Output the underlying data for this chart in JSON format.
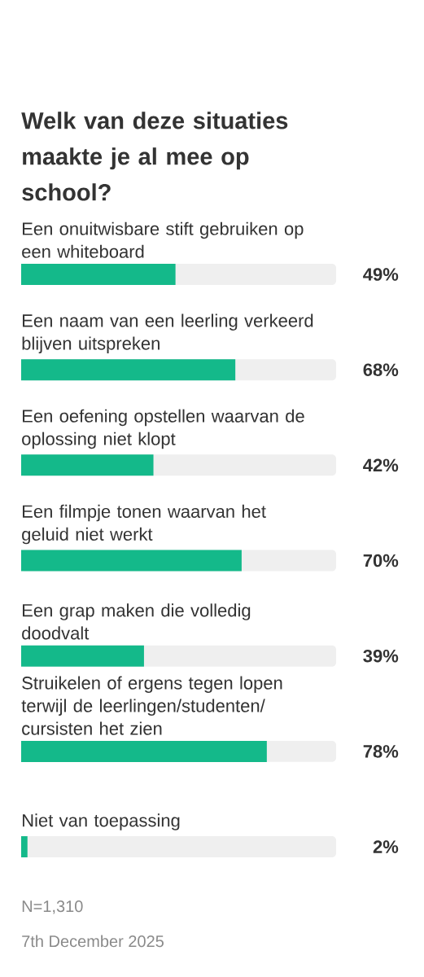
{
  "chart_data": {
    "type": "bar",
    "orientation": "horizontal",
    "title": "Welk van deze situaties maakte je al mee op school?",
    "categories": [
      "Een onuitwisbare stift gebruiken op een whiteboard",
      "Een naam van een leerling verkeerd blijven uitspreken",
      "Een oefening opstellen waarvan de oplossing niet klopt",
      "Een filmpje tonen waarvan het geluid niet werkt",
      "Een grap maken die volledig doodvalt",
      "Struikelen of ergens tegen lopen terwijl de leerlingen/studenten/cursisten het zien",
      "Niet van toepassing"
    ],
    "values": [
      49,
      68,
      42,
      70,
      39,
      78,
      2
    ],
    "value_labels": [
      "49%",
      "68%",
      "42%",
      "70%",
      "39%",
      "78%",
      "2%"
    ],
    "color": "#14b98a",
    "xlim": [
      0,
      100
    ],
    "annotations": [
      "N=1,310",
      "7th December 2025"
    ]
  }
}
